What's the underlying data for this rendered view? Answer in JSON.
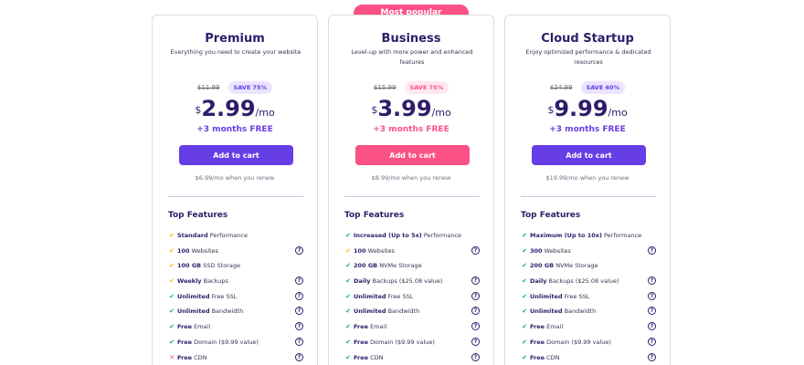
{
  "badge": "Most popular",
  "colors": {
    "primary": "#673de6",
    "accent": "#fc5185",
    "check": "#00b090",
    "warn": "#ffb800",
    "text": "#2f1c6a"
  },
  "plans": [
    {
      "title": "Premium",
      "desc": "Everything you need to create your website",
      "old_price": "$11.99",
      "save": "SAVE 75%",
      "currency": "$",
      "amount": "2.99",
      "per": "/mo",
      "free_months": "+3 months FREE",
      "cta": "Add to cart",
      "renew": "$6.99/mo when you renew",
      "features_title": "Top Features",
      "features": [
        {
          "bold": "Standard",
          "rest": " Performance",
          "icon": "check-yellow",
          "help": false
        },
        {
          "bold": "100",
          "rest": " Websites",
          "icon": "check-yellow",
          "help": true
        },
        {
          "bold": "100 GB",
          "rest": " SSD Storage",
          "icon": "check-yellow",
          "help": false
        },
        {
          "bold": "Weekly",
          "rest": " Backups",
          "icon": "check-yellow",
          "help": true
        },
        {
          "bold": "Unlimited",
          "rest": " Free SSL",
          "icon": "check-green",
          "help": true
        },
        {
          "bold": "Unlimited",
          "rest": " Bandwidth",
          "icon": "check-green",
          "help": true
        },
        {
          "bold": "Free",
          "rest": " Email",
          "icon": "check-green",
          "help": true
        },
        {
          "bold": "Free",
          "rest": " Domain ($9.99 value)",
          "icon": "check-green",
          "help": true
        },
        {
          "bold": "Free",
          "rest": " CDN",
          "icon": "cross",
          "help": true
        }
      ]
    },
    {
      "title": "Business",
      "desc": "Level-up with more power and enhanced features",
      "old_price": "$15.99",
      "save": "SAVE 75%",
      "currency": "$",
      "amount": "3.99",
      "per": "/mo",
      "free_months": "+3 months FREE",
      "cta": "Add to cart",
      "renew": "$8.99/mo when you renew",
      "features_title": "Top Features",
      "features": [
        {
          "bold": "Increased (Up to 5x)",
          "rest": " Performance",
          "icon": "check-green",
          "help": false
        },
        {
          "bold": "100",
          "rest": " Websites",
          "icon": "check-yellow",
          "help": true
        },
        {
          "bold": "200 GB",
          "rest": " NVMe Storage",
          "icon": "check-green",
          "help": false
        },
        {
          "bold": "Daily",
          "rest": " Backups ($25.08 value)",
          "icon": "check-green",
          "help": true
        },
        {
          "bold": "Unlimited",
          "rest": " Free SSL",
          "icon": "check-green",
          "help": true
        },
        {
          "bold": "Unlimited",
          "rest": " Bandwidth",
          "icon": "check-green",
          "help": true
        },
        {
          "bold": "Free",
          "rest": " Email",
          "icon": "check-green",
          "help": true
        },
        {
          "bold": "Free",
          "rest": " Domain ($9.99 value)",
          "icon": "check-green",
          "help": true
        },
        {
          "bold": "Free",
          "rest": " CDN",
          "icon": "check-green",
          "help": true
        }
      ]
    },
    {
      "title": "Cloud Startup",
      "desc": "Enjoy optimized performance & dedicated resources",
      "old_price": "$24.99",
      "save": "SAVE 60%",
      "currency": "$",
      "amount": "9.99",
      "per": "/mo",
      "free_months": "+3 months FREE",
      "cta": "Add to cart",
      "renew": "$19.99/mo when you renew",
      "features_title": "Top Features",
      "features": [
        {
          "bold": "Maximum (Up to 10x)",
          "rest": " Performance",
          "icon": "check-green",
          "help": false
        },
        {
          "bold": "300",
          "rest": " Websites",
          "icon": "check-green",
          "help": true
        },
        {
          "bold": "200 GB",
          "rest": " NVMe Storage",
          "icon": "check-green",
          "help": false
        },
        {
          "bold": "Daily",
          "rest": " Backups ($25.08 value)",
          "icon": "check-green",
          "help": true
        },
        {
          "bold": "Unlimited",
          "rest": " Free SSL",
          "icon": "check-green",
          "help": true
        },
        {
          "bold": "Unlimited",
          "rest": " Bandwidth",
          "icon": "check-green",
          "help": true
        },
        {
          "bold": "Free",
          "rest": " Email",
          "icon": "check-green",
          "help": true
        },
        {
          "bold": "Free",
          "rest": " Domain ($9.99 value)",
          "icon": "check-green",
          "help": true
        },
        {
          "bold": "Free",
          "rest": " CDN",
          "icon": "check-green",
          "help": true
        }
      ]
    }
  ]
}
